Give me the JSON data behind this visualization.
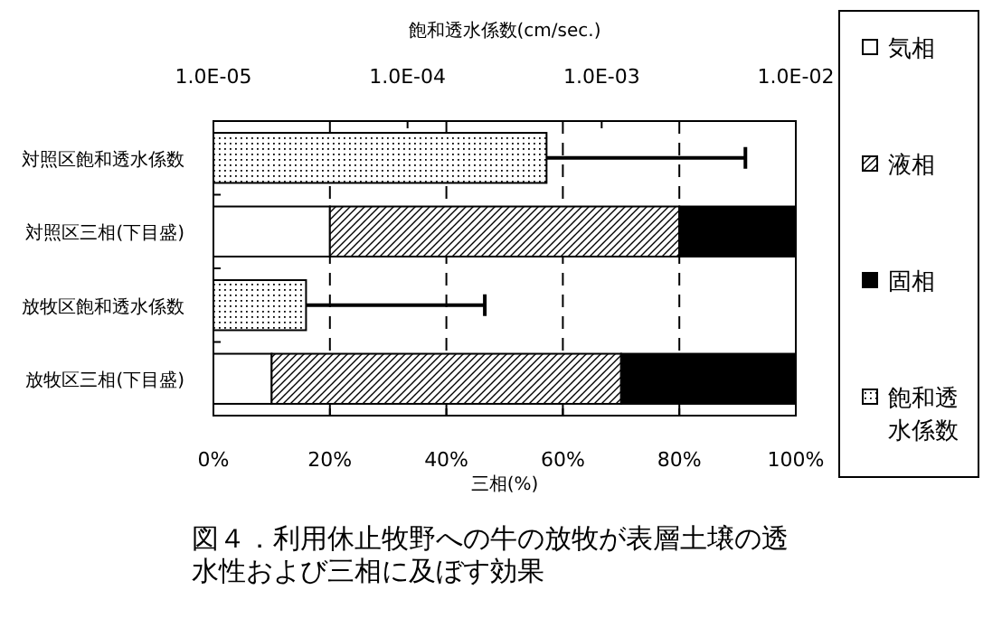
{
  "chart_data": {
    "type": "bar",
    "orientation": "horizontal",
    "stacked": true,
    "title": "図４．利用休止牧野への牛の放牧が表層土壌の透水性および三相に及ぼす効果",
    "xlabel": "三相(%)",
    "x2label": "飽和透水係数(cm/sec.)",
    "categories": [
      "対照区飽和透水係数",
      "対照区三相(下目盛)",
      "放牧区飽和透水係数",
      "放牧区三相(下目盛)"
    ],
    "series": [
      {
        "name": "気相",
        "color": "#ffffff",
        "values": [
          null,
          20,
          null,
          10
        ]
      },
      {
        "name": "液相",
        "color": "#000000",
        "values": [
          null,
          60,
          null,
          60
        ]
      },
      {
        "name": "固相",
        "color": "#000000",
        "values": [
          null,
          20,
          null,
          30
        ]
      },
      {
        "name": "飽和透水係数",
        "color": "#000000",
        "axis": "x2",
        "values": [
          0.00052,
          null,
          3e-05,
          null
        ],
        "errors": [
          [
            0.00052,
            0.0055
          ],
          null,
          [
            3e-05,
            0.00025
          ],
          null
        ]
      }
    ],
    "xlim": [
      0,
      100
    ],
    "xticks": [
      {
        "value": 0,
        "label": "0%"
      },
      {
        "value": 20,
        "label": "20%"
      },
      {
        "value": 40,
        "label": "40%"
      },
      {
        "value": 60,
        "label": "60%"
      },
      {
        "value": 80,
        "label": "80%"
      },
      {
        "value": 100,
        "label": "100%"
      }
    ],
    "x2lim": [
      1e-05,
      0.01
    ],
    "x2ticks": [
      {
        "value": 1e-05,
        "label": "1.0E-05"
      },
      {
        "value": 0.0001,
        "label": "1.0E-04"
      },
      {
        "value": 0.001,
        "label": "1.0E-03"
      },
      {
        "value": 0.01,
        "label": "1.0E-02"
      }
    ],
    "log": "x2",
    "grid": "x",
    "legend": "right"
  }
}
